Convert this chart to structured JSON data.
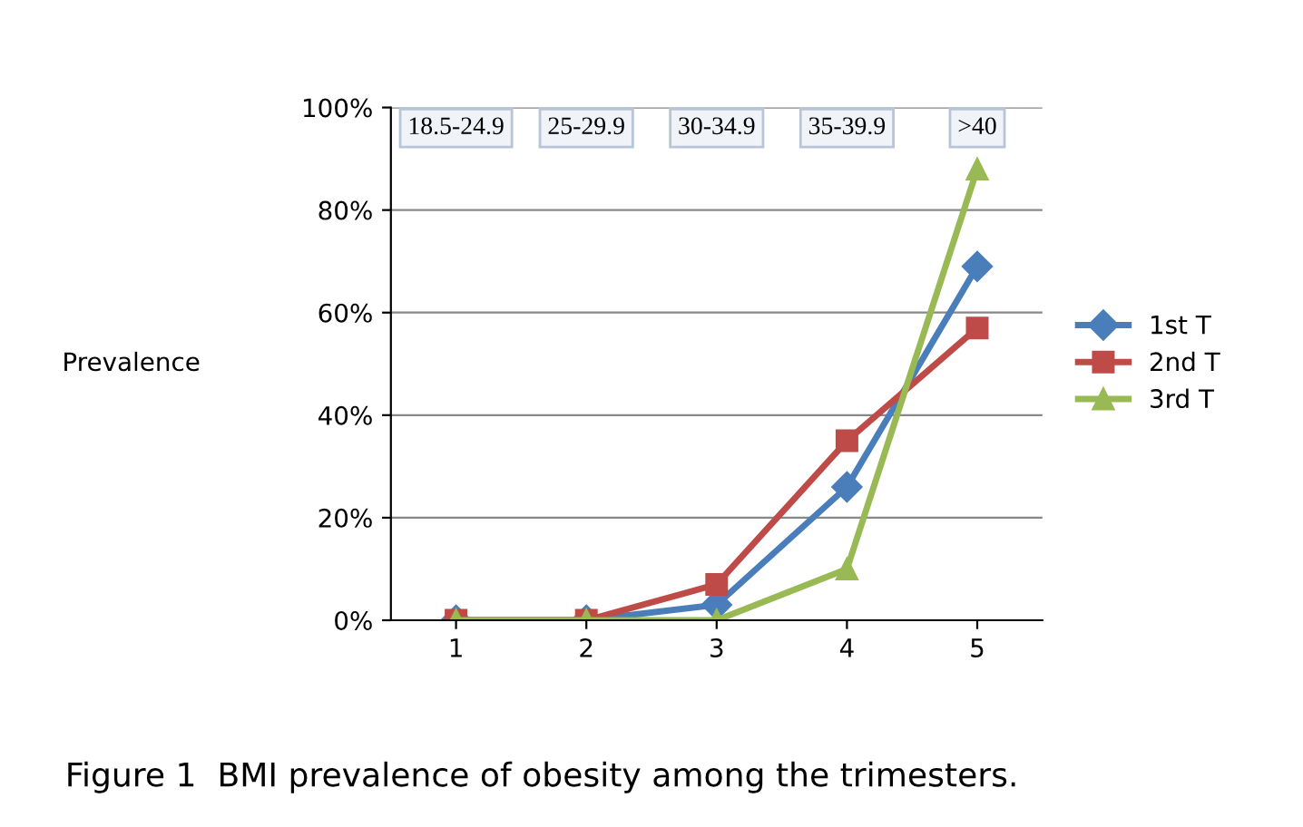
{
  "chart_data": {
    "type": "line",
    "title": "Figure 1  BMI prevalence of obesity among the trimesters.",
    "ylabel": "Prevalence",
    "categories": [
      "1",
      "2",
      "3",
      "4",
      "5"
    ],
    "annotations": [
      "18.5-24.9",
      "25-29.9",
      "30-34.9",
      "35-39.9",
      ">40"
    ],
    "series": [
      {
        "name": "1st T",
        "color": "#4a7ebb",
        "marker": "diamond",
        "values": [
          0,
          0,
          3,
          26,
          69
        ]
      },
      {
        "name": "2nd T",
        "color": "#be4b48",
        "marker": "square",
        "values": [
          0,
          0,
          7,
          35,
          57
        ]
      },
      {
        "name": "3rd T",
        "color": "#98b954",
        "marker": "triangle",
        "values": [
          0,
          0,
          0,
          10,
          88
        ]
      }
    ],
    "ylim": [
      0,
      100
    ],
    "yticks": [
      {
        "value": 0,
        "label": "0%"
      },
      {
        "value": 20,
        "label": "20%"
      },
      {
        "value": 40,
        "label": "40%"
      },
      {
        "value": 60,
        "label": "60%"
      },
      {
        "value": 80,
        "label": "80%"
      },
      {
        "value": 100,
        "label": "100%"
      }
    ],
    "grid": "y",
    "legend": "right"
  }
}
